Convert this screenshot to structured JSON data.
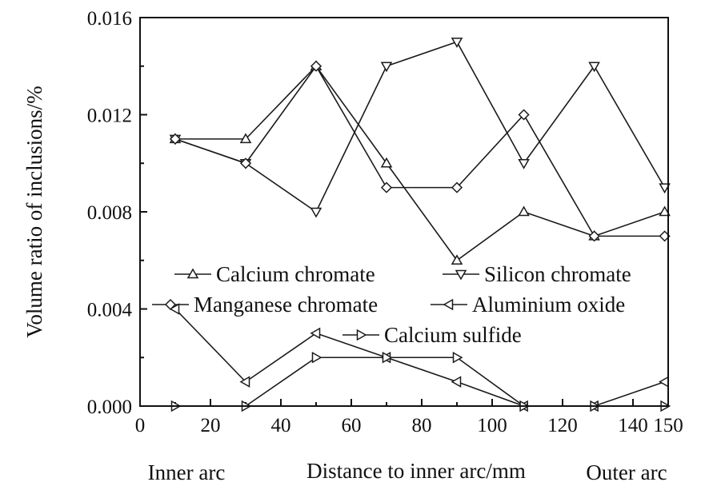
{
  "chart_data": {
    "type": "line",
    "ylabel": "Volume ratio of inclusions/%",
    "xlabel": "Distance to inner arc/mm",
    "x_left_label": "Inner arc",
    "x_right_label": "Outer arc",
    "xlim": [
      0,
      150
    ],
    "ylim": [
      0,
      0.016
    ],
    "x_ticks": [
      0,
      20,
      40,
      60,
      80,
      100,
      120,
      140,
      150
    ],
    "x_tick_labels": [
      "0",
      "20",
      "40",
      "60",
      "80",
      "100",
      "120",
      "140",
      "150"
    ],
    "y_ticks": [
      0,
      0.004,
      0.008,
      0.012,
      0.016
    ],
    "y_tick_labels": [
      "0.000",
      "0.004",
      "0.008",
      "0.012",
      "0.016"
    ],
    "grid": false,
    "legend_placement": "center",
    "series": [
      {
        "name": "Calcium chromate",
        "marker": "triangle-up",
        "x": [
          10,
          30,
          50,
          70,
          90,
          109,
          129,
          149
        ],
        "y": [
          0.011,
          0.011,
          0.014,
          0.01,
          0.006,
          0.008,
          0.007,
          0.008
        ]
      },
      {
        "name": "Silicon chromate",
        "marker": "triangle-down",
        "x": [
          10,
          30,
          50,
          70,
          90,
          109,
          129,
          149
        ],
        "y": [
          0.011,
          0.01,
          0.008,
          0.014,
          0.015,
          0.01,
          0.014,
          0.009
        ]
      },
      {
        "name": "Manganese chromate",
        "marker": "diamond",
        "x": [
          10,
          30,
          50,
          70,
          90,
          109,
          129,
          149
        ],
        "y": [
          0.011,
          0.01,
          0.014,
          0.009,
          0.009,
          0.012,
          0.007,
          0.007
        ]
      },
      {
        "name": "Aluminium oxide",
        "marker": "triangle-left",
        "x": [
          10,
          30,
          50,
          70,
          90,
          109,
          129,
          149
        ],
        "y": [
          0.004,
          0.001,
          0.003,
          0.002,
          0.001,
          0.0,
          0.0,
          0.001
        ]
      },
      {
        "name": "Calcium sulfide",
        "marker": "triangle-right",
        "x": [
          10,
          30,
          50,
          70,
          90,
          109,
          129,
          149
        ],
        "y": [
          0.0,
          0.0,
          0.002,
          0.002,
          0.002,
          0.0,
          0.0,
          0.0
        ]
      }
    ]
  }
}
